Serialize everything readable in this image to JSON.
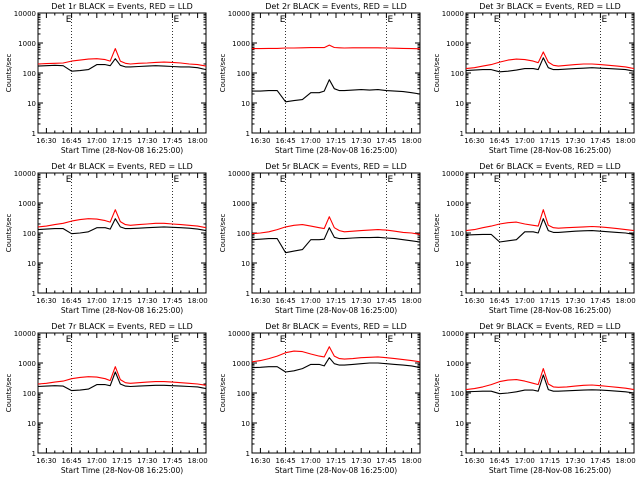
{
  "figure": {
    "ylabel": "Counts/sec",
    "xlabel": "Start Time (28-Nov-08 16:25:00)",
    "x_tick_labels": [
      "16:30",
      "16:45",
      "17:00",
      "17:15",
      "17:30",
      "17:45",
      "18:00"
    ],
    "y_tick_labels": [
      "1",
      "10",
      "100",
      "1000",
      "10000"
    ],
    "flag_label": "E",
    "event_color": "#000000",
    "lld_color": "#ff0000"
  },
  "chart_data": [
    {
      "type": "line",
      "title": "Det 1r BLACK = Events, RED = LLD",
      "xlabel": "Start Time (28-Nov-08 16:25:00)",
      "ylabel": "Counts/sec",
      "xlim": [
        "16:25",
        "18:05"
      ],
      "ylim": [
        1,
        10000
      ],
      "yscale": "log",
      "vlines": [
        "16:45",
        "17:45"
      ],
      "x": [
        "16:25",
        "16:30",
        "16:35",
        "16:40",
        "16:45",
        "16:50",
        "16:55",
        "17:00",
        "17:05",
        "17:08",
        "17:11",
        "17:14",
        "17:17",
        "17:20",
        "17:25",
        "17:30",
        "17:35",
        "17:40",
        "17:45",
        "17:50",
        "17:55",
        "18:00",
        "18:05"
      ],
      "series": [
        {
          "name": "Events",
          "color": "#000000",
          "values": [
            170,
            175,
            180,
            175,
            115,
            120,
            130,
            190,
            190,
            175,
            300,
            180,
            160,
            160,
            165,
            170,
            175,
            170,
            165,
            160,
            160,
            150,
            130
          ]
        },
        {
          "name": "LLD",
          "color": "#ff0000",
          "values": [
            200,
            205,
            210,
            215,
            250,
            270,
            290,
            300,
            280,
            250,
            650,
            250,
            210,
            200,
            210,
            215,
            225,
            230,
            225,
            215,
            200,
            190,
            170
          ]
        }
      ]
    },
    {
      "type": "line",
      "title": "Det 2r BLACK = Events, RED = LLD",
      "xlabel": "Start Time (28-Nov-08 16:25:00)",
      "ylabel": "Counts/sec",
      "xlim": [
        "16:25",
        "18:05"
      ],
      "ylim": [
        1,
        10000
      ],
      "yscale": "log",
      "vlines": [
        "16:45",
        "17:45"
      ],
      "x": [
        "16:25",
        "16:30",
        "16:35",
        "16:40",
        "16:45",
        "16:50",
        "16:55",
        "17:00",
        "17:05",
        "17:08",
        "17:11",
        "17:14",
        "17:17",
        "17:20",
        "17:25",
        "17:30",
        "17:35",
        "17:40",
        "17:45",
        "17:50",
        "17:55",
        "18:00",
        "18:05"
      ],
      "series": [
        {
          "name": "Events",
          "color": "#000000",
          "values": [
            25,
            25,
            26,
            26,
            11,
            12,
            13,
            22,
            22,
            25,
            60,
            30,
            26,
            26,
            27,
            28,
            27,
            28,
            26,
            25,
            24,
            22,
            20
          ]
        },
        {
          "name": "LLD",
          "color": "#ff0000",
          "values": [
            650,
            650,
            660,
            660,
            680,
            680,
            690,
            700,
            700,
            700,
            850,
            710,
            690,
            680,
            690,
            690,
            690,
            690,
            680,
            670,
            660,
            650,
            640
          ]
        }
      ]
    },
    {
      "type": "line",
      "title": "Det 3r BLACK = Events, RED = LLD",
      "xlabel": "Start Time (28-Nov-08 16:25:00)",
      "ylabel": "Counts/sec",
      "xlim": [
        "16:25",
        "18:05"
      ],
      "ylim": [
        1,
        10000
      ],
      "yscale": "log",
      "vlines": [
        "16:45",
        "17:45"
      ],
      "x": [
        "16:25",
        "16:30",
        "16:35",
        "16:40",
        "16:45",
        "16:50",
        "16:55",
        "17:00",
        "17:05",
        "17:08",
        "17:11",
        "17:14",
        "17:17",
        "17:20",
        "17:25",
        "17:30",
        "17:35",
        "17:40",
        "17:45",
        "17:50",
        "17:55",
        "18:00",
        "18:05"
      ],
      "series": [
        {
          "name": "Events",
          "color": "#000000",
          "values": [
            120,
            125,
            130,
            130,
            110,
            115,
            125,
            140,
            140,
            130,
            320,
            150,
            130,
            130,
            135,
            140,
            145,
            150,
            145,
            140,
            135,
            130,
            115
          ]
        },
        {
          "name": "LLD",
          "color": "#ff0000",
          "values": [
            140,
            150,
            170,
            190,
            230,
            270,
            290,
            280,
            250,
            220,
            500,
            230,
            180,
            170,
            180,
            190,
            200,
            200,
            190,
            180,
            170,
            160,
            140
          ]
        }
      ]
    },
    {
      "type": "line",
      "title": "Det 4r BLACK = Events, RED = LLD",
      "xlabel": "Start Time (28-Nov-08 16:25:00)",
      "ylabel": "Counts/sec",
      "xlim": [
        "16:25",
        "18:05"
      ],
      "ylim": [
        1,
        10000
      ],
      "yscale": "log",
      "vlines": [
        "16:45",
        "17:45"
      ],
      "x": [
        "16:25",
        "16:30",
        "16:35",
        "16:40",
        "16:45",
        "16:50",
        "16:55",
        "17:00",
        "17:05",
        "17:08",
        "17:11",
        "17:14",
        "17:17",
        "17:20",
        "17:25",
        "17:30",
        "17:35",
        "17:40",
        "17:45",
        "17:50",
        "17:55",
        "18:00",
        "18:05"
      ],
      "series": [
        {
          "name": "Events",
          "color": "#000000",
          "values": [
            130,
            135,
            140,
            140,
            95,
            100,
            110,
            150,
            150,
            135,
            300,
            160,
            140,
            140,
            145,
            150,
            155,
            160,
            155,
            150,
            145,
            135,
            120
          ]
        },
        {
          "name": "LLD",
          "color": "#ff0000",
          "values": [
            160,
            170,
            190,
            210,
            250,
            280,
            300,
            290,
            260,
            230,
            600,
            240,
            190,
            180,
            190,
            200,
            210,
            210,
            200,
            190,
            180,
            170,
            150
          ]
        }
      ]
    },
    {
      "type": "line",
      "title": "Det 5r BLACK = Events, RED = LLD",
      "xlabel": "Start Time (28-Nov-08 16:25:00)",
      "ylabel": "Counts/sec",
      "xlim": [
        "16:25",
        "18:05"
      ],
      "ylim": [
        1,
        10000
      ],
      "yscale": "log",
      "vlines": [
        "16:45",
        "17:45"
      ],
      "x": [
        "16:25",
        "16:30",
        "16:35",
        "16:40",
        "16:45",
        "16:50",
        "16:55",
        "17:00",
        "17:05",
        "17:08",
        "17:11",
        "17:14",
        "17:17",
        "17:20",
        "17:25",
        "17:30",
        "17:35",
        "17:40",
        "17:45",
        "17:50",
        "17:55",
        "18:00",
        "18:05"
      ],
      "series": [
        {
          "name": "Events",
          "color": "#000000",
          "values": [
            60,
            62,
            65,
            65,
            22,
            25,
            28,
            60,
            60,
            62,
            150,
            72,
            65,
            65,
            68,
            70,
            70,
            72,
            68,
            65,
            60,
            55,
            50
          ]
        },
        {
          "name": "LLD",
          "color": "#ff0000",
          "values": [
            95,
            100,
            110,
            130,
            160,
            180,
            190,
            170,
            150,
            140,
            350,
            150,
            120,
            110,
            115,
            120,
            125,
            130,
            125,
            115,
            105,
            100,
            90
          ]
        }
      ]
    },
    {
      "type": "line",
      "title": "Det 6r BLACK = Events, RED = LLD",
      "xlabel": "Start Time (28-Nov-08 16:25:00)",
      "ylabel": "Counts/sec",
      "xlim": [
        "16:25",
        "18:05"
      ],
      "ylim": [
        1,
        10000
      ],
      "yscale": "log",
      "vlines": [
        "16:45",
        "17:45"
      ],
      "x": [
        "16:25",
        "16:30",
        "16:35",
        "16:40",
        "16:45",
        "16:50",
        "16:55",
        "17:00",
        "17:05",
        "17:08",
        "17:11",
        "17:14",
        "17:17",
        "17:20",
        "17:25",
        "17:30",
        "17:35",
        "17:40",
        "17:45",
        "17:50",
        "17:55",
        "18:00",
        "18:05"
      ],
      "series": [
        {
          "name": "Events",
          "color": "#000000",
          "values": [
            85,
            88,
            90,
            90,
            50,
            55,
            60,
            110,
            110,
            100,
            300,
            120,
            105,
            105,
            110,
            115,
            118,
            120,
            115,
            110,
            105,
            100,
            90
          ]
        },
        {
          "name": "LLD",
          "color": "#ff0000",
          "values": [
            120,
            130,
            150,
            170,
            200,
            220,
            230,
            200,
            180,
            170,
            600,
            180,
            150,
            145,
            150,
            155,
            160,
            165,
            160,
            150,
            140,
            130,
            120
          ]
        }
      ]
    },
    {
      "type": "line",
      "title": "Det 7r BLACK = Events, RED = LLD",
      "xlabel": "Start Time (28-Nov-08 16:25:00)",
      "ylabel": "Counts/sec",
      "xlim": [
        "16:25",
        "18:05"
      ],
      "ylim": [
        1,
        10000
      ],
      "yscale": "log",
      "vlines": [
        "16:45",
        "17:45"
      ],
      "x": [
        "16:25",
        "16:30",
        "16:35",
        "16:40",
        "16:45",
        "16:50",
        "16:55",
        "17:00",
        "17:05",
        "17:08",
        "17:11",
        "17:14",
        "17:17",
        "17:20",
        "17:25",
        "17:30",
        "17:35",
        "17:40",
        "17:45",
        "17:50",
        "17:55",
        "18:00",
        "18:05"
      ],
      "series": [
        {
          "name": "Events",
          "color": "#000000",
          "values": [
            165,
            170,
            175,
            170,
            120,
            125,
            135,
            190,
            190,
            175,
            500,
            200,
            170,
            165,
            170,
            175,
            180,
            180,
            175,
            170,
            165,
            160,
            140
          ]
        },
        {
          "name": "LLD",
          "color": "#ff0000",
          "values": [
            200,
            210,
            230,
            250,
            300,
            330,
            350,
            340,
            300,
            260,
            750,
            280,
            220,
            210,
            220,
            230,
            240,
            240,
            230,
            220,
            210,
            200,
            180
          ]
        }
      ]
    },
    {
      "type": "line",
      "title": "Det 8r BLACK = Events, RED = LLD",
      "xlabel": "Start Time (28-Nov-08 16:25:00)",
      "ylabel": "Counts/sec",
      "xlim": [
        "16:25",
        "18:05"
      ],
      "ylim": [
        1,
        10000
      ],
      "yscale": "log",
      "vlines": [
        "16:45",
        "17:45"
      ],
      "x": [
        "16:25",
        "16:30",
        "16:35",
        "16:40",
        "16:45",
        "16:50",
        "16:55",
        "17:00",
        "17:05",
        "17:08",
        "17:11",
        "17:14",
        "17:17",
        "17:20",
        "17:25",
        "17:30",
        "17:35",
        "17:40",
        "17:45",
        "17:50",
        "17:55",
        "18:00",
        "18:05"
      ],
      "series": [
        {
          "name": "Events",
          "color": "#000000",
          "values": [
            700,
            720,
            750,
            750,
            500,
            550,
            650,
            900,
            900,
            800,
            1500,
            950,
            850,
            850,
            900,
            950,
            1000,
            1000,
            950,
            900,
            850,
            800,
            700
          ]
        },
        {
          "name": "LLD",
          "color": "#ff0000",
          "values": [
            1100,
            1200,
            1400,
            1700,
            2200,
            2500,
            2400,
            2000,
            1700,
            1600,
            3500,
            1700,
            1400,
            1350,
            1400,
            1500,
            1550,
            1600,
            1500,
            1400,
            1300,
            1200,
            1100
          ]
        }
      ]
    },
    {
      "type": "line",
      "title": "Det 9r BLACK = Events, RED = LLD",
      "xlabel": "Start Time (28-Nov-08 16:25:00)",
      "ylabel": "Counts/sec",
      "xlim": [
        "16:25",
        "18:05"
      ],
      "ylim": [
        1,
        10000
      ],
      "yscale": "log",
      "vlines": [
        "16:45",
        "17:45"
      ],
      "x": [
        "16:25",
        "16:30",
        "16:35",
        "16:40",
        "16:45",
        "16:50",
        "16:55",
        "17:00",
        "17:05",
        "17:08",
        "17:11",
        "17:14",
        "17:17",
        "17:20",
        "17:25",
        "17:30",
        "17:35",
        "17:40",
        "17:45",
        "17:50",
        "17:55",
        "18:00",
        "18:05"
      ],
      "series": [
        {
          "name": "Events",
          "color": "#000000",
          "values": [
            110,
            112,
            115,
            115,
            95,
            100,
            110,
            125,
            125,
            115,
            400,
            130,
            115,
            115,
            118,
            122,
            125,
            128,
            125,
            120,
            115,
            110,
            100
          ]
        },
        {
          "name": "LLD",
          "color": "#ff0000",
          "values": [
            130,
            140,
            160,
            190,
            240,
            270,
            280,
            250,
            210,
            190,
            650,
            200,
            160,
            155,
            160,
            170,
            180,
            185,
            175,
            165,
            155,
            145,
            130
          ]
        }
      ]
    }
  ]
}
